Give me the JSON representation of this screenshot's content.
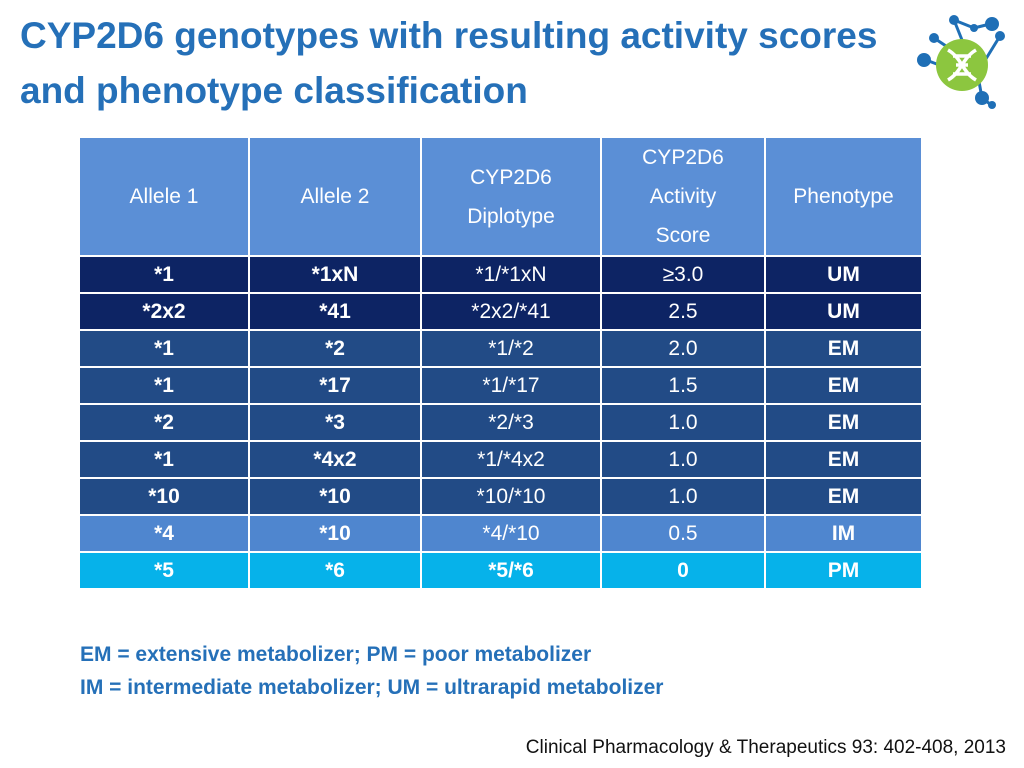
{
  "title": {
    "line1": "CYP2D6 genotypes with resulting activity scores",
    "line2": "and phenotype classification"
  },
  "logo": {
    "icon": "dna-molecule-logo",
    "colors": {
      "green": "#8cc63f",
      "blue": "#1f6fb6"
    }
  },
  "table": {
    "headers": [
      {
        "lines": [
          "Allele 1"
        ]
      },
      {
        "lines": [
          "Allele 2"
        ]
      },
      {
        "lines": [
          "CYP2D6",
          "Diplotype"
        ]
      },
      {
        "lines": [
          "CYP2D6",
          "Activity",
          "Score"
        ]
      },
      {
        "lines": [
          "Phenotype"
        ]
      }
    ],
    "rows": [
      {
        "cells": [
          "*1",
          "*1xN",
          "*1/*1xN",
          "≥3.0",
          "UM"
        ],
        "color": "#0d2464"
      },
      {
        "cells": [
          "*2x2",
          "*41",
          "*2x2/*41",
          "2.5",
          "UM"
        ],
        "color": "#0d2464"
      },
      {
        "cells": [
          "*1",
          "*2",
          "*1/*2",
          "2.0",
          "EM"
        ],
        "color": "#224b86"
      },
      {
        "cells": [
          "*1",
          "*17",
          "*1/*17",
          "1.5",
          "EM"
        ],
        "color": "#224b86"
      },
      {
        "cells": [
          "*2",
          "*3",
          "*2/*3",
          "1.0",
          "EM"
        ],
        "color": "#224b86"
      },
      {
        "cells": [
          "*1",
          "*4x2",
          "*1/*4x2",
          "1.0",
          "EM"
        ],
        "color": "#224b86"
      },
      {
        "cells": [
          "*10",
          "*10",
          "*10/*10",
          "1.0",
          "EM"
        ],
        "color": "#224b86"
      },
      {
        "cells": [
          "*4",
          "*10",
          "*4/*10",
          "0.5",
          "IM"
        ],
        "color": "#4f86cf"
      },
      {
        "cells": [
          "*5",
          "*6",
          "*5/*6",
          "0",
          "PM"
        ],
        "color": "#06b2ea"
      }
    ],
    "bold_columns": [
      0,
      1,
      4
    ],
    "bold_all_row": 8
  },
  "footnote": {
    "line1": "EM = extensive metabolizer; PM = poor metabolizer",
    "line2": "IM = intermediate metabolizer; UM = ultrarapid metabolizer"
  },
  "citation": "Clinical Pharmacology & Therapeutics 93: 402-408, 2013",
  "colors": {
    "title": "#2570b8",
    "header_bg": "#5b8fd6"
  }
}
